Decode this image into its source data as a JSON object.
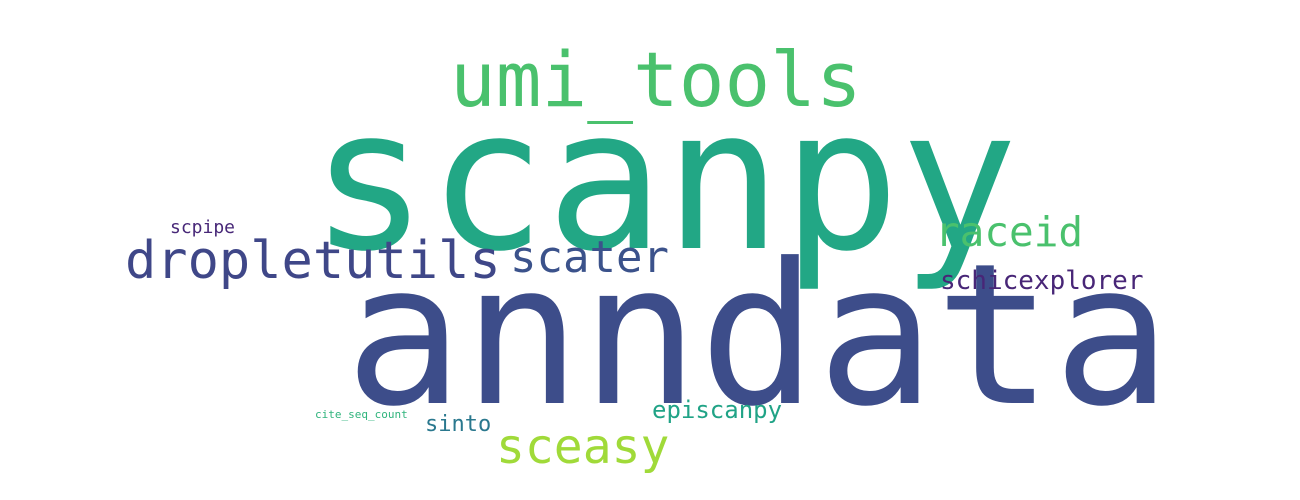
{
  "words": [
    {
      "id": "scanpy",
      "text": "scanpy",
      "color": "#22a785"
    },
    {
      "id": "anndata",
      "text": "anndata",
      "color": "#3d4d8a"
    },
    {
      "id": "umi_tools",
      "text": "umi_tools",
      "color": "#4ac16d"
    },
    {
      "id": "dropletutils",
      "text": "dropletutils",
      "color": "#3f4788"
    },
    {
      "id": "scater",
      "text": "scater",
      "color": "#3b528b"
    },
    {
      "id": "raceid",
      "text": "raceid",
      "color": "#4ac16d"
    },
    {
      "id": "schicexplorer",
      "text": "schicexplorer",
      "color": "#482677"
    },
    {
      "id": "scpipe",
      "text": "scpipe",
      "color": "#482878"
    },
    {
      "id": "episcanpy",
      "text": "episcanpy",
      "color": "#20a386"
    },
    {
      "id": "sceasy",
      "text": "sceasy",
      "color": "#a0da39"
    },
    {
      "id": "sinto",
      "text": "sinto",
      "color": "#2a788e"
    },
    {
      "id": "cite_seq_count",
      "text": "cite_seq_count",
      "color": "#2fb47c"
    }
  ]
}
